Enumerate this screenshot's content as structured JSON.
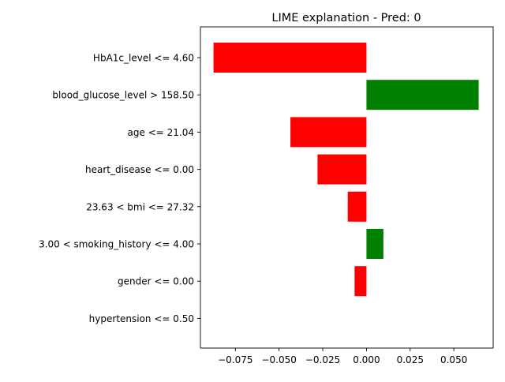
{
  "chart_data": {
    "type": "bar",
    "orientation": "horizontal",
    "title": "LIME explanation - Pred: 0",
    "xlabel": "",
    "ylabel": "",
    "categories": [
      "HbA1c_level <= 4.60",
      "blood_glucose_level > 158.50",
      "age <= 21.04",
      "heart_disease <= 0.00",
      "23.63 < bmi <= 27.32",
      "3.00 < smoking_history <= 4.00",
      "gender <= 0.00",
      "hypertension <= 0.50"
    ],
    "values": [
      -0.0875,
      0.0642,
      -0.0435,
      -0.028,
      -0.0107,
      0.0097,
      -0.0068,
      0.0
    ],
    "xlim": [
      -0.095,
      0.0725
    ],
    "xticks": [
      -0.075,
      -0.05,
      -0.025,
      0.0,
      0.025,
      0.05
    ],
    "xtick_labels": [
      "−0.075",
      "−0.050",
      "−0.025",
      "0.000",
      "0.025",
      "0.050"
    ],
    "colors": {
      "positive": "#008000",
      "negative": "#ff0000",
      "axis": "#000000",
      "text": "#000000"
    },
    "grid": false,
    "legend": "none"
  }
}
